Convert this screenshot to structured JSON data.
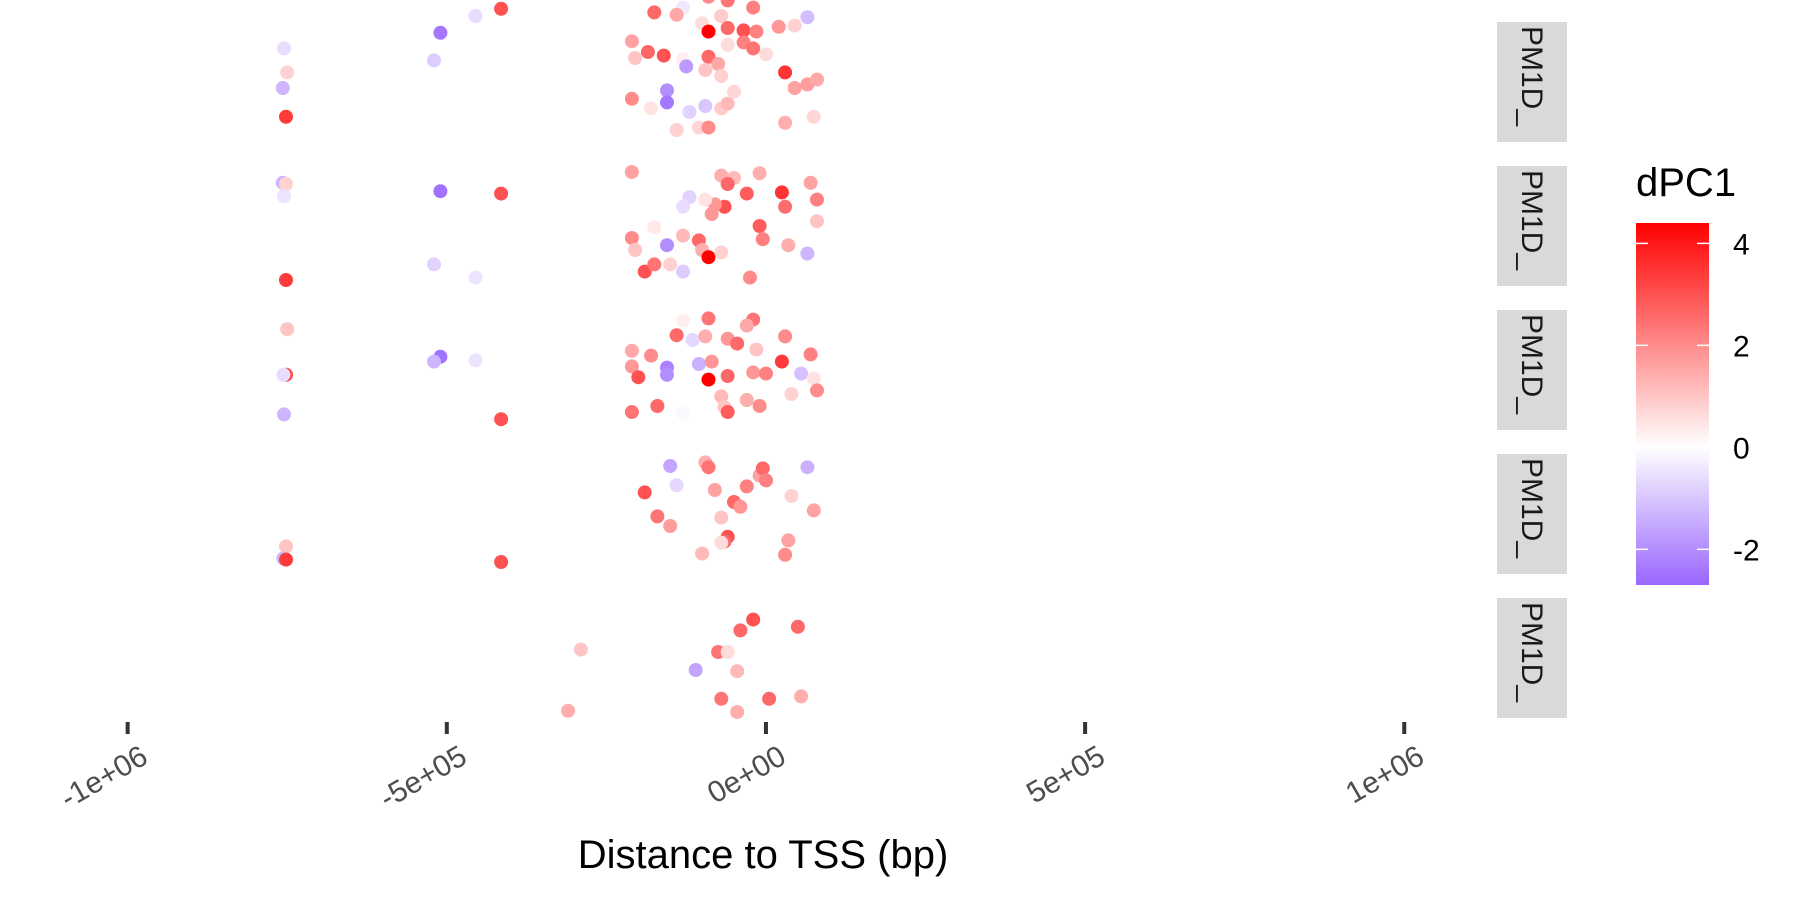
{
  "chart_data": {
    "type": "scatter",
    "xlabel": "Distance to TSS (bp)",
    "xlim": [
      -1200000,
      1150000
    ],
    "x_ticks": [
      {
        "value": -1000000,
        "label": "-1e+06"
      },
      {
        "value": -500000,
        "label": "-5e+05"
      },
      {
        "value": 0,
        "label": "0e+00"
      },
      {
        "value": 500000,
        "label": "5e+05"
      },
      {
        "value": 1000000,
        "label": "1e+06"
      }
    ],
    "grid": false,
    "color_scale": {
      "title": "dPC1",
      "limits": [
        -2.7,
        4.4
      ],
      "ticks": [
        {
          "value": -2,
          "label": "-2"
        },
        {
          "value": 0,
          "label": "0"
        },
        {
          "value": 2,
          "label": "2"
        },
        {
          "value": 4,
          "label": "4"
        }
      ],
      "low_color": "#9966ff",
      "mid_color": "#ffffff",
      "high_color": "#ff0000",
      "legend_position": "right"
    },
    "strip_color": "#d9d9d9",
    "panels": [
      {
        "label": "PM1D_",
        "points": [
          {
            "x": -755000,
            "y": 0.78,
            "c": -0.6
          },
          {
            "x": -750000,
            "y": 0.58,
            "c": 0.8
          },
          {
            "x": -757000,
            "y": 0.45,
            "c": -1.3
          },
          {
            "x": -752000,
            "y": 0.21,
            "c": 3.4
          },
          {
            "x": -510000,
            "y": 0.91,
            "c": -2.4
          },
          {
            "x": -520000,
            "y": 0.68,
            "c": -0.9
          },
          {
            "x": -455000,
            "y": 1.05,
            "c": -0.6
          },
          {
            "x": -415000,
            "y": 1.11,
            "c": 3.0
          },
          {
            "x": -135000,
            "y": 1.24,
            "c": 0.3
          },
          {
            "x": -90000,
            "y": 1.21,
            "c": 2.0
          },
          {
            "x": -60000,
            "y": 1.18,
            "c": 2.4
          },
          {
            "x": -130000,
            "y": 1.12,
            "c": -0.4
          },
          {
            "x": -175000,
            "y": 1.08,
            "c": 2.6
          },
          {
            "x": -140000,
            "y": 1.06,
            "c": 1.5
          },
          {
            "x": -100000,
            "y": 0.99,
            "c": 0.6
          },
          {
            "x": -70000,
            "y": 1.05,
            "c": 0.9
          },
          {
            "x": -20000,
            "y": 1.12,
            "c": 2.2
          },
          {
            "x": -90000,
            "y": 0.92,
            "c": 4.4
          },
          {
            "x": -60000,
            "y": 0.95,
            "c": 2.6
          },
          {
            "x": -35000,
            "y": 0.93,
            "c": 3.0
          },
          {
            "x": -15000,
            "y": 0.92,
            "c": 2.2
          },
          {
            "x": 20000,
            "y": 0.96,
            "c": 1.8
          },
          {
            "x": 45000,
            "y": 0.97,
            "c": 0.8
          },
          {
            "x": 65000,
            "y": 1.04,
            "c": -1.2
          },
          {
            "x": -210000,
            "y": 0.84,
            "c": 1.6
          },
          {
            "x": -185000,
            "y": 0.75,
            "c": 2.6
          },
          {
            "x": -160000,
            "y": 0.72,
            "c": 3.0
          },
          {
            "x": -130000,
            "y": 0.69,
            "c": 0.3
          },
          {
            "x": -90000,
            "y": 0.71,
            "c": 2.6
          },
          {
            "x": -75000,
            "y": 0.65,
            "c": 1.5
          },
          {
            "x": -60000,
            "y": 0.81,
            "c": 0.6
          },
          {
            "x": -35000,
            "y": 0.83,
            "c": 2.2
          },
          {
            "x": -20000,
            "y": 0.78,
            "c": 2.4
          },
          {
            "x": 0,
            "y": 0.73,
            "c": 0.6
          },
          {
            "x": 30000,
            "y": 0.58,
            "c": 3.5
          },
          {
            "x": 65000,
            "y": 0.48,
            "c": 1.7
          },
          {
            "x": 80000,
            "y": 0.52,
            "c": 1.5
          },
          {
            "x": -205000,
            "y": 0.7,
            "c": 1.0
          },
          {
            "x": -125000,
            "y": 0.63,
            "c": -1.8
          },
          {
            "x": -95000,
            "y": 0.6,
            "c": 1.0
          },
          {
            "x": -70000,
            "y": 0.55,
            "c": 0.8
          },
          {
            "x": -210000,
            "y": 0.36,
            "c": 2.0
          },
          {
            "x": -180000,
            "y": 0.28,
            "c": 0.5
          },
          {
            "x": -155000,
            "y": 0.43,
            "c": -2.0
          },
          {
            "x": -155000,
            "y": 0.33,
            "c": -2.4
          },
          {
            "x": -120000,
            "y": 0.25,
            "c": -0.8
          },
          {
            "x": -105000,
            "y": 0.12,
            "c": 0.7
          },
          {
            "x": -90000,
            "y": 0.12,
            "c": 2.0
          },
          {
            "x": -70000,
            "y": 0.28,
            "c": 0.9
          },
          {
            "x": -60000,
            "y": 0.32,
            "c": 1.2
          },
          {
            "x": -140000,
            "y": 0.1,
            "c": 0.8
          },
          {
            "x": -95000,
            "y": 0.3,
            "c": -1.0
          },
          {
            "x": -50000,
            "y": 0.42,
            "c": 0.7
          },
          {
            "x": 30000,
            "y": 0.16,
            "c": 1.4
          },
          {
            "x": 45000,
            "y": 0.45,
            "c": 1.6
          },
          {
            "x": 75000,
            "y": 0.21,
            "c": 0.7
          }
        ]
      },
      {
        "label": "PM1D_",
        "points": [
          {
            "x": -757000,
            "y": 0.86,
            "c": -1.3
          },
          {
            "x": -752000,
            "y": 0.85,
            "c": 0.8
          },
          {
            "x": -755000,
            "y": 0.75,
            "c": -0.5
          },
          {
            "x": -752000,
            "y": 0.05,
            "c": 3.4
          },
          {
            "x": -510000,
            "y": 0.79,
            "c": -2.5
          },
          {
            "x": -415000,
            "y": 0.77,
            "c": 3.0
          },
          {
            "x": -520000,
            "y": 0.18,
            "c": -0.8
          },
          {
            "x": -455000,
            "y": 0.07,
            "c": -0.5
          },
          {
            "x": -210000,
            "y": 0.95,
            "c": 1.6
          },
          {
            "x": -70000,
            "y": 0.92,
            "c": 1.4
          },
          {
            "x": -50000,
            "y": 0.9,
            "c": 1.2
          },
          {
            "x": -10000,
            "y": 0.94,
            "c": 1.4
          },
          {
            "x": 25000,
            "y": 0.78,
            "c": 3.5
          },
          {
            "x": 70000,
            "y": 0.86,
            "c": 1.6
          },
          {
            "x": 80000,
            "y": 0.72,
            "c": 2.2
          },
          {
            "x": -60000,
            "y": 0.85,
            "c": 2.6
          },
          {
            "x": -30000,
            "y": 0.77,
            "c": 2.8
          },
          {
            "x": -65000,
            "y": 0.66,
            "c": 3.0
          },
          {
            "x": -80000,
            "y": 0.68,
            "c": 1.8
          },
          {
            "x": -95000,
            "y": 0.72,
            "c": 0.5
          },
          {
            "x": -120000,
            "y": 0.74,
            "c": -0.8
          },
          {
            "x": -130000,
            "y": 0.66,
            "c": -0.6
          },
          {
            "x": -85000,
            "y": 0.6,
            "c": 1.8
          },
          {
            "x": 30000,
            "y": 0.66,
            "c": 2.5
          },
          {
            "x": 80000,
            "y": 0.54,
            "c": 1.0
          },
          {
            "x": -175000,
            "y": 0.49,
            "c": 0.4
          },
          {
            "x": -210000,
            "y": 0.4,
            "c": 2.0
          },
          {
            "x": -205000,
            "y": 0.3,
            "c": 1.0
          },
          {
            "x": -155000,
            "y": 0.34,
            "c": -2.0
          },
          {
            "x": -130000,
            "y": 0.42,
            "c": 1.2
          },
          {
            "x": -105000,
            "y": 0.38,
            "c": 2.6
          },
          {
            "x": -100000,
            "y": 0.3,
            "c": 1.4
          },
          {
            "x": -90000,
            "y": 0.24,
            "c": 4.4
          },
          {
            "x": -70000,
            "y": 0.28,
            "c": 0.8
          },
          {
            "x": -10000,
            "y": 0.5,
            "c": 2.8
          },
          {
            "x": -5000,
            "y": 0.39,
            "c": 2.2
          },
          {
            "x": 35000,
            "y": 0.34,
            "c": 1.4
          },
          {
            "x": 65000,
            "y": 0.27,
            "c": -1.3
          },
          {
            "x": -190000,
            "y": 0.12,
            "c": 3.0
          },
          {
            "x": -175000,
            "y": 0.18,
            "c": 2.4
          },
          {
            "x": -150000,
            "y": 0.18,
            "c": 0.8
          },
          {
            "x": -130000,
            "y": 0.12,
            "c": -0.9
          },
          {
            "x": -25000,
            "y": 0.07,
            "c": 2.0
          }
        ]
      },
      {
        "label": "PM1D_",
        "points": [
          {
            "x": -750000,
            "y": 0.84,
            "c": 1.0
          },
          {
            "x": -752000,
            "y": 0.46,
            "c": 3.2
          },
          {
            "x": -756000,
            "y": 0.46,
            "c": -0.6
          },
          {
            "x": -755000,
            "y": 0.13,
            "c": -1.3
          },
          {
            "x": -510000,
            "y": 0.61,
            "c": -2.5
          },
          {
            "x": -520000,
            "y": 0.57,
            "c": -1.3
          },
          {
            "x": -455000,
            "y": 0.58,
            "c": -0.5
          },
          {
            "x": -415000,
            "y": 0.09,
            "c": 3.0
          },
          {
            "x": -90000,
            "y": 0.93,
            "c": 2.4
          },
          {
            "x": -130000,
            "y": 0.91,
            "c": 0.3
          },
          {
            "x": -20000,
            "y": 0.92,
            "c": 2.4
          },
          {
            "x": -30000,
            "y": 0.87,
            "c": 1.5
          },
          {
            "x": -140000,
            "y": 0.79,
            "c": 2.6
          },
          {
            "x": -115000,
            "y": 0.75,
            "c": -0.7
          },
          {
            "x": -95000,
            "y": 0.78,
            "c": 1.4
          },
          {
            "x": -60000,
            "y": 0.76,
            "c": 1.8
          },
          {
            "x": -45000,
            "y": 0.72,
            "c": 2.6
          },
          {
            "x": -15000,
            "y": 0.67,
            "c": 1.0
          },
          {
            "x": 30000,
            "y": 0.78,
            "c": 2.0
          },
          {
            "x": 70000,
            "y": 0.63,
            "c": 2.2
          },
          {
            "x": -210000,
            "y": 0.66,
            "c": 1.5
          },
          {
            "x": -180000,
            "y": 0.62,
            "c": 2.0
          },
          {
            "x": -105000,
            "y": 0.55,
            "c": -1.4
          },
          {
            "x": -85000,
            "y": 0.57,
            "c": 1.8
          },
          {
            "x": 25000,
            "y": 0.57,
            "c": 3.4
          },
          {
            "x": 55000,
            "y": 0.47,
            "c": -1.1
          },
          {
            "x": 75000,
            "y": 0.43,
            "c": 0.5
          },
          {
            "x": -210000,
            "y": 0.53,
            "c": 1.8
          },
          {
            "x": -200000,
            "y": 0.44,
            "c": 3.0
          },
          {
            "x": -155000,
            "y": 0.52,
            "c": -2.2
          },
          {
            "x": -155000,
            "y": 0.46,
            "c": -2.0
          },
          {
            "x": -90000,
            "y": 0.42,
            "c": 4.4
          },
          {
            "x": -60000,
            "y": 0.45,
            "c": 2.6
          },
          {
            "x": -20000,
            "y": 0.48,
            "c": 1.8
          },
          {
            "x": 0,
            "y": 0.47,
            "c": 2.2
          },
          {
            "x": 40000,
            "y": 0.3,
            "c": 0.8
          },
          {
            "x": 80000,
            "y": 0.33,
            "c": 2.0
          },
          {
            "x": -210000,
            "y": 0.15,
            "c": 2.4
          },
          {
            "x": -170000,
            "y": 0.2,
            "c": 2.6
          },
          {
            "x": -130000,
            "y": 0.14,
            "c": -0.1
          },
          {
            "x": -70000,
            "y": 0.28,
            "c": 1.2
          },
          {
            "x": -65000,
            "y": 0.19,
            "c": 1.0
          },
          {
            "x": -60000,
            "y": 0.15,
            "c": 2.8
          },
          {
            "x": -10000,
            "y": 0.2,
            "c": 2.0
          },
          {
            "x": -30000,
            "y": 0.25,
            "c": 1.4
          }
        ]
      },
      {
        "label": "PM1D_",
        "points": [
          {
            "x": -752000,
            "y": 0.23,
            "c": 1.0
          },
          {
            "x": -756000,
            "y": 0.13,
            "c": -1.3
          },
          {
            "x": -752000,
            "y": 0.12,
            "c": 3.4
          },
          {
            "x": -415000,
            "y": 0.1,
            "c": 3.0
          },
          {
            "x": -150000,
            "y": 0.9,
            "c": -1.6
          },
          {
            "x": -95000,
            "y": 0.93,
            "c": 1.4
          },
          {
            "x": -90000,
            "y": 0.89,
            "c": 2.4
          },
          {
            "x": 65000,
            "y": 0.89,
            "c": -1.4
          },
          {
            "x": -140000,
            "y": 0.74,
            "c": -0.7
          },
          {
            "x": -10000,
            "y": 0.82,
            "c": 1.6
          },
          {
            "x": -5000,
            "y": 0.88,
            "c": 2.6
          },
          {
            "x": -190000,
            "y": 0.68,
            "c": 3.0
          },
          {
            "x": -80000,
            "y": 0.7,
            "c": 1.6
          },
          {
            "x": -30000,
            "y": 0.73,
            "c": 2.2
          },
          {
            "x": 0,
            "y": 0.78,
            "c": 2.2
          },
          {
            "x": -50000,
            "y": 0.6,
            "c": 2.6
          },
          {
            "x": -40000,
            "y": 0.56,
            "c": 1.8
          },
          {
            "x": 40000,
            "y": 0.65,
            "c": 0.8
          },
          {
            "x": 75000,
            "y": 0.53,
            "c": 1.6
          },
          {
            "x": -170000,
            "y": 0.48,
            "c": 2.4
          },
          {
            "x": -150000,
            "y": 0.4,
            "c": 1.7
          },
          {
            "x": -70000,
            "y": 0.47,
            "c": 1.0
          },
          {
            "x": -60000,
            "y": 0.31,
            "c": 3.0
          },
          {
            "x": -65000,
            "y": 0.27,
            "c": 2.6
          },
          {
            "x": -70000,
            "y": 0.26,
            "c": 0.6
          },
          {
            "x": -100000,
            "y": 0.17,
            "c": 1.2
          },
          {
            "x": 35000,
            "y": 0.28,
            "c": 1.6
          },
          {
            "x": 30000,
            "y": 0.16,
            "c": 2.0
          }
        ]
      },
      {
        "label": "PM1D_",
        "points": [
          {
            "x": -20000,
            "y": 0.82,
            "c": 3.0
          },
          {
            "x": 50000,
            "y": 0.76,
            "c": 2.6
          },
          {
            "x": -40000,
            "y": 0.73,
            "c": 2.6
          },
          {
            "x": -290000,
            "y": 0.57,
            "c": 1.0
          },
          {
            "x": -75000,
            "y": 0.55,
            "c": 2.4
          },
          {
            "x": -60000,
            "y": 0.55,
            "c": 0.6
          },
          {
            "x": -110000,
            "y": 0.4,
            "c": -1.6
          },
          {
            "x": -45000,
            "y": 0.39,
            "c": 1.2
          },
          {
            "x": -70000,
            "y": 0.16,
            "c": 2.4
          },
          {
            "x": 5000,
            "y": 0.16,
            "c": 2.6
          },
          {
            "x": 55000,
            "y": 0.18,
            "c": 1.4
          },
          {
            "x": -310000,
            "y": 0.06,
            "c": 1.4
          },
          {
            "x": -45000,
            "y": 0.05,
            "c": 1.4
          }
        ]
      }
    ]
  }
}
